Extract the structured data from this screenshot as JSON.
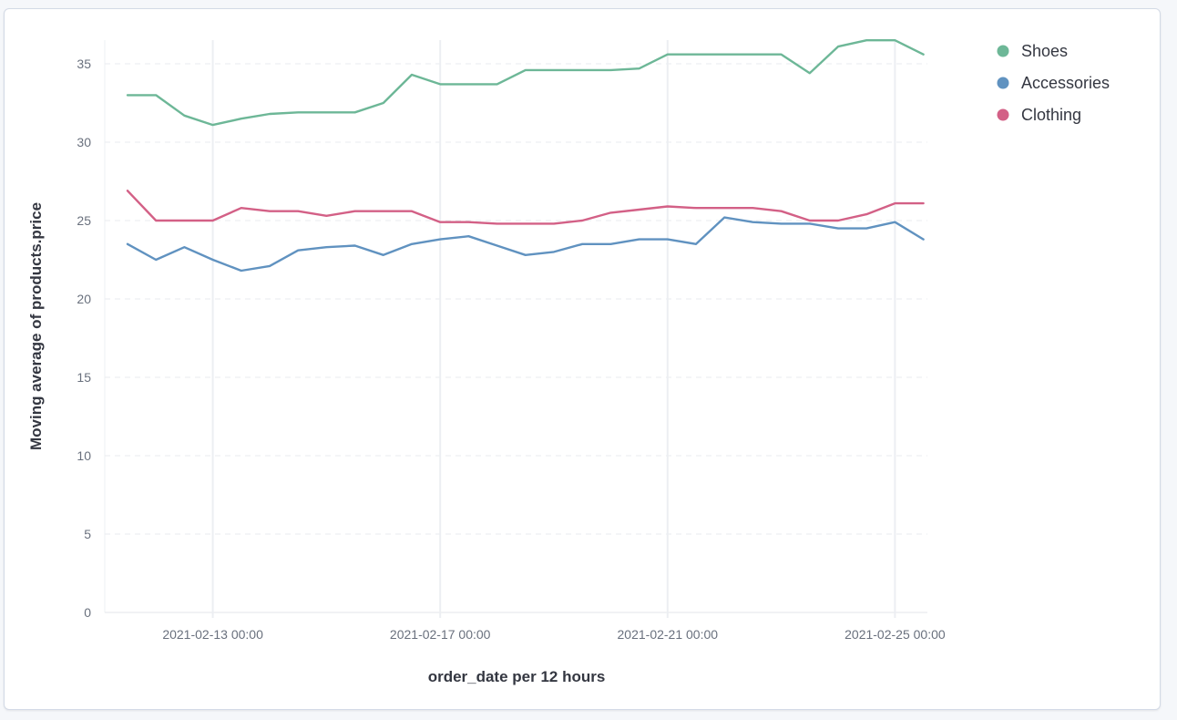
{
  "chart_data": {
    "type": "line",
    "xlabel": "order_date per 12 hours",
    "ylabel": "Moving average of products.price",
    "ylim": [
      0,
      36.5
    ],
    "yticks": [
      0,
      5,
      10,
      15,
      20,
      25,
      30,
      35
    ],
    "x": [
      "2021-02-11 12:00",
      "2021-02-12 00:00",
      "2021-02-12 12:00",
      "2021-02-13 00:00",
      "2021-02-13 12:00",
      "2021-02-14 00:00",
      "2021-02-14 12:00",
      "2021-02-15 00:00",
      "2021-02-15 12:00",
      "2021-02-16 00:00",
      "2021-02-16 12:00",
      "2021-02-17 00:00",
      "2021-02-17 12:00",
      "2021-02-18 00:00",
      "2021-02-18 12:00",
      "2021-02-19 00:00",
      "2021-02-19 12:00",
      "2021-02-20 00:00",
      "2021-02-20 12:00",
      "2021-02-21 00:00",
      "2021-02-21 12:00",
      "2021-02-22 00:00",
      "2021-02-22 12:00",
      "2021-02-23 00:00",
      "2021-02-23 12:00",
      "2021-02-24 00:00",
      "2021-02-24 12:00",
      "2021-02-25 00:00",
      "2021-02-25 12:00"
    ],
    "xticks": [
      "2021-02-13 00:00",
      "2021-02-17 00:00",
      "2021-02-21 00:00",
      "2021-02-25 00:00"
    ],
    "legend_position": "top-right",
    "grid": true,
    "series": [
      {
        "name": "Shoes",
        "color": "#6db797",
        "values": [
          33.0,
          33.0,
          31.7,
          31.1,
          31.5,
          31.8,
          31.9,
          31.9,
          31.9,
          32.5,
          34.3,
          33.7,
          33.7,
          33.7,
          34.6,
          34.6,
          34.6,
          34.6,
          34.7,
          35.6,
          35.6,
          35.6,
          35.6,
          35.6,
          34.4,
          36.1,
          36.5,
          36.5,
          35.6
        ]
      },
      {
        "name": "Accessories",
        "color": "#6092c0",
        "values": [
          23.5,
          22.5,
          23.3,
          22.5,
          21.8,
          22.1,
          23.1,
          23.3,
          23.4,
          22.8,
          23.5,
          23.8,
          24.0,
          23.4,
          22.8,
          23.0,
          23.5,
          23.5,
          23.8,
          23.8,
          23.5,
          25.2,
          24.9,
          24.8,
          24.8,
          24.5,
          24.5,
          24.9,
          23.8
        ]
      },
      {
        "name": "Clothing",
        "color": "#d36086",
        "values": [
          26.9,
          25.0,
          25.0,
          25.0,
          25.8,
          25.6,
          25.6,
          25.3,
          25.6,
          25.6,
          25.6,
          24.9,
          24.9,
          24.8,
          24.8,
          24.8,
          25.0,
          25.5,
          25.7,
          25.9,
          25.8,
          25.8,
          25.8,
          25.6,
          25.0,
          25.0,
          25.4,
          26.1,
          26.1
        ]
      }
    ]
  }
}
